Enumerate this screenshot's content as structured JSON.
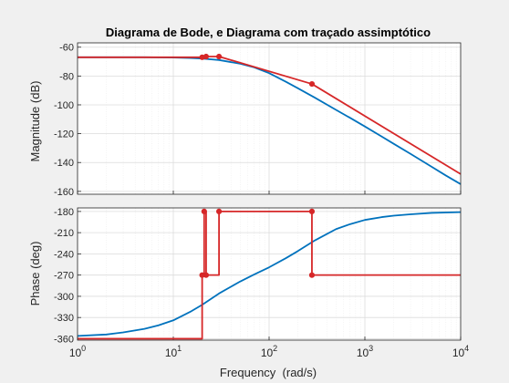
{
  "figure": {
    "title": "Diagrama de Bode, e Diagrama com traçado assimptótico",
    "colors": {
      "background": "#f0f0f0",
      "axes_bg": "#ffffff",
      "bode": "#0072bd",
      "asymptote": "#d62728",
      "grid": "#dcdcdc",
      "tick_text": "#262626"
    }
  },
  "chart_data": [
    {
      "type": "line",
      "name": "magnitude",
      "xlabel": "",
      "ylabel": "Magnitude (dB)",
      "xscale": "log",
      "xlim": [
        1,
        10000
      ],
      "ylim": [
        -162,
        -57
      ],
      "yticks": [
        -60,
        -80,
        -100,
        -120,
        -140,
        -160
      ],
      "grid": true,
      "series": [
        {
          "role": "bode",
          "x": [
            1,
            2,
            5,
            10,
            15,
            20,
            30,
            50,
            70,
            100,
            150,
            200,
            300,
            500,
            700,
            1000,
            1500,
            2000,
            3000,
            5000,
            7000,
            10000
          ],
          "y": [
            -67,
            -67,
            -67,
            -67.2,
            -67.5,
            -67.9,
            -68.9,
            -71.5,
            -74,
            -78,
            -84,
            -88.5,
            -95,
            -103.5,
            -109,
            -115,
            -122,
            -127,
            -134,
            -143,
            -149,
            -155
          ]
        },
        {
          "role": "asymptote",
          "x": [
            1,
            20,
            21,
            22,
            30,
            280,
            10000
          ],
          "y": [
            -67,
            -67,
            -66.5,
            -66.5,
            -66.5,
            -85.5,
            -148
          ]
        }
      ],
      "markers": [
        {
          "x": 20,
          "y": -67
        },
        {
          "x": 22,
          "y": -66.5
        },
        {
          "x": 30,
          "y": -66.5
        },
        {
          "x": 280,
          "y": -85.5
        }
      ]
    },
    {
      "type": "line",
      "name": "phase",
      "xlabel": "Frequency  (rad/s)",
      "ylabel": "Phase (deg)",
      "xscale": "log",
      "xlim": [
        1,
        10000
      ],
      "ylim": [
        -362,
        -175
      ],
      "yticks": [
        -180,
        -210,
        -240,
        -270,
        -300,
        -330,
        -360
      ],
      "xticks": [
        {
          "base": "10",
          "exp": "0",
          "value": 1
        },
        {
          "base": "10",
          "exp": "1",
          "value": 10
        },
        {
          "base": "10",
          "exp": "2",
          "value": 100
        },
        {
          "base": "10",
          "exp": "3",
          "value": 1000
        },
        {
          "base": "10",
          "exp": "4",
          "value": 10000
        }
      ],
      "grid": true,
      "series": [
        {
          "role": "bode",
          "x": [
            1,
            2,
            3,
            5,
            7,
            10,
            15,
            20,
            30,
            50,
            70,
            100,
            150,
            200,
            300,
            500,
            700,
            1000,
            1500,
            2000,
            3000,
            5000,
            10000
          ],
          "y": [
            -356,
            -354,
            -351,
            -346,
            -341,
            -334,
            -322,
            -312,
            -296,
            -279,
            -269,
            -259,
            -246,
            -236,
            -221,
            -205,
            -198,
            -192,
            -188,
            -186,
            -184,
            -182,
            -181
          ]
        },
        {
          "role": "asymptote",
          "x": [
            1,
            20,
            20,
            21,
            21,
            22,
            22,
            30,
            30,
            280,
            280,
            10000
          ],
          "y": [
            -360,
            -360,
            -270,
            -270,
            -180,
            -180,
            -270,
            -270,
            -180,
            -180,
            -270,
            -270
          ]
        }
      ],
      "markers": [
        {
          "x": 20,
          "y": -270
        },
        {
          "x": 21,
          "y": -180
        },
        {
          "x": 22,
          "y": -270
        },
        {
          "x": 30,
          "y": -180
        },
        {
          "x": 280,
          "y": -180
        },
        {
          "x": 280,
          "y": -270
        }
      ]
    }
  ]
}
